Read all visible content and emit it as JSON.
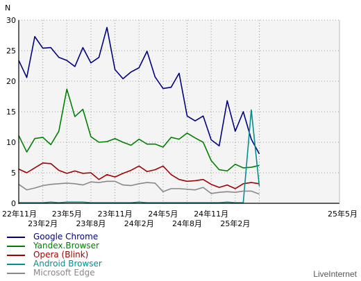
{
  "chart_data": {
    "type": "line",
    "ylabel": "N",
    "ylim": [
      0,
      30
    ],
    "yticks": [
      0,
      5,
      10,
      15,
      20,
      25,
      30
    ],
    "xlim": [
      0,
      40
    ],
    "xticks": [
      {
        "label": "22年11月",
        "x": 0
      },
      {
        "label": "23年2月",
        "x": 3
      },
      {
        "label": "23年5月",
        "x": 6
      },
      {
        "label": "23年8月",
        "x": 9
      },
      {
        "label": "23年11月",
        "x": 12
      },
      {
        "label": "24年2月",
        "x": 15
      },
      {
        "label": "24年5月",
        "x": 18
      },
      {
        "label": "24年8月",
        "x": 21
      },
      {
        "label": "24年11月",
        "x": 24
      },
      {
        "label": "25年2月",
        "x": 27
      },
      {
        "label": "25年5月",
        "x": 30
      }
    ],
    "grid": true,
    "legend_position": "bottom-left",
    "series": [
      {
        "name": "Google Chrome",
        "color": "#00007f",
        "values": [
          23.4,
          20.6,
          27.3,
          25.4,
          25.5,
          23.9,
          23.4,
          22.4,
          25.5,
          23.0,
          23.9,
          28.8,
          21.9,
          20.4,
          21.5,
          22.2,
          24.9,
          20.7,
          18.8,
          19.0,
          21.3,
          14.3,
          13.5,
          14.3,
          10.4,
          9.4,
          16.8,
          11.8,
          15.0,
          10.5,
          8.1
        ]
      },
      {
        "name": "Yandex.Browser",
        "color": "#008000",
        "values": [
          11.1,
          8.4,
          10.6,
          10.8,
          9.6,
          11.8,
          18.7,
          14.2,
          15.4,
          10.9,
          10.0,
          10.1,
          10.6,
          10.0,
          9.5,
          10.5,
          9.7,
          9.7,
          9.2,
          10.8,
          10.5,
          11.5,
          10.7,
          10.0,
          7.0,
          5.5,
          5.3,
          6.4,
          5.8,
          5.9,
          6.2
        ]
      },
      {
        "name": "Opera (Blink)",
        "color": "#a00000",
        "values": [
          5.6,
          5.0,
          5.8,
          6.6,
          6.5,
          5.4,
          4.9,
          5.3,
          4.9,
          5.0,
          3.9,
          4.7,
          4.3,
          4.9,
          5.4,
          6.1,
          5.2,
          5.5,
          6.1,
          4.7,
          3.9,
          3.6,
          3.7,
          3.9,
          3.1,
          2.6,
          3.0,
          2.4,
          3.2,
          3.4,
          3.2
        ]
      },
      {
        "name": "Android Browser",
        "color": "#009090",
        "values": [
          0.1,
          0.1,
          0.1,
          0.1,
          0.2,
          0.1,
          0.2,
          0.2,
          0.2,
          0.1,
          0.1,
          0.1,
          0.1,
          0.1,
          0.1,
          0.2,
          0.1,
          0.1,
          0.1,
          0.1,
          0.1,
          0.1,
          0.1,
          0.1,
          0.1,
          0.1,
          0.2,
          0.1,
          0.1,
          15.3,
          2.8
        ]
      },
      {
        "name": "Microsoft Edge",
        "color": "#888888",
        "values": [
          3.1,
          2.2,
          2.5,
          2.9,
          3.1,
          3.2,
          3.3,
          3.2,
          3.0,
          3.5,
          3.4,
          3.6,
          3.6,
          3.0,
          2.9,
          3.2,
          3.4,
          3.3,
          1.9,
          2.4,
          2.4,
          2.3,
          2.2,
          2.6,
          1.6,
          1.8,
          1.9,
          1.8,
          2.0,
          2.0,
          1.5
        ]
      }
    ]
  },
  "branding": "LiveInternet"
}
